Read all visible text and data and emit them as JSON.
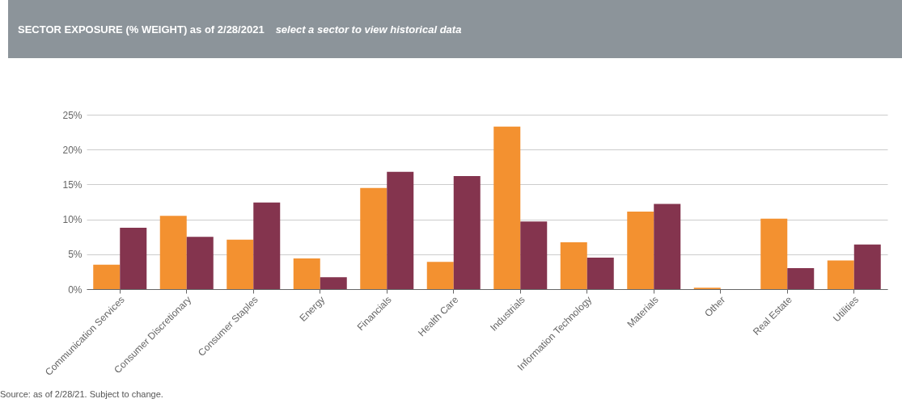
{
  "chart_data": {
    "type": "bar",
    "title": "SECTOR EXPOSURE (% WEIGHT) as of 2/28/2021",
    "subtitle": "select a sector to view historical data",
    "categories": [
      "Communication Services",
      "Consumer Discretionary",
      "Consumer Staples",
      "Energy",
      "Financials",
      "Health Care",
      "Industrials",
      "Information Technology",
      "Materials",
      "Other",
      "Real Estate",
      "Utilities"
    ],
    "series": [
      {
        "color": "#f39130",
        "values": [
          3.5,
          10.5,
          7.1,
          4.4,
          14.5,
          3.9,
          23.3,
          6.7,
          11.1,
          0.2,
          10.1,
          4.1
        ]
      },
      {
        "color": "#84344e",
        "values": [
          8.8,
          7.5,
          12.4,
          1.7,
          16.8,
          16.2,
          9.7,
          4.5,
          12.2,
          0,
          3.0,
          6.4
        ]
      }
    ],
    "ylim": [
      0,
      25
    ],
    "yticks": [
      {
        "value": 0,
        "label": "0%"
      },
      {
        "value": 5,
        "label": "5%"
      },
      {
        "value": 10,
        "label": "10%"
      },
      {
        "value": 15,
        "label": "15%"
      },
      {
        "value": 20,
        "label": "20%"
      },
      {
        "value": 25,
        "label": "25%"
      }
    ],
    "grid": "y",
    "annotations": [
      "Source: as of 2/28/21. Subject to change."
    ]
  }
}
